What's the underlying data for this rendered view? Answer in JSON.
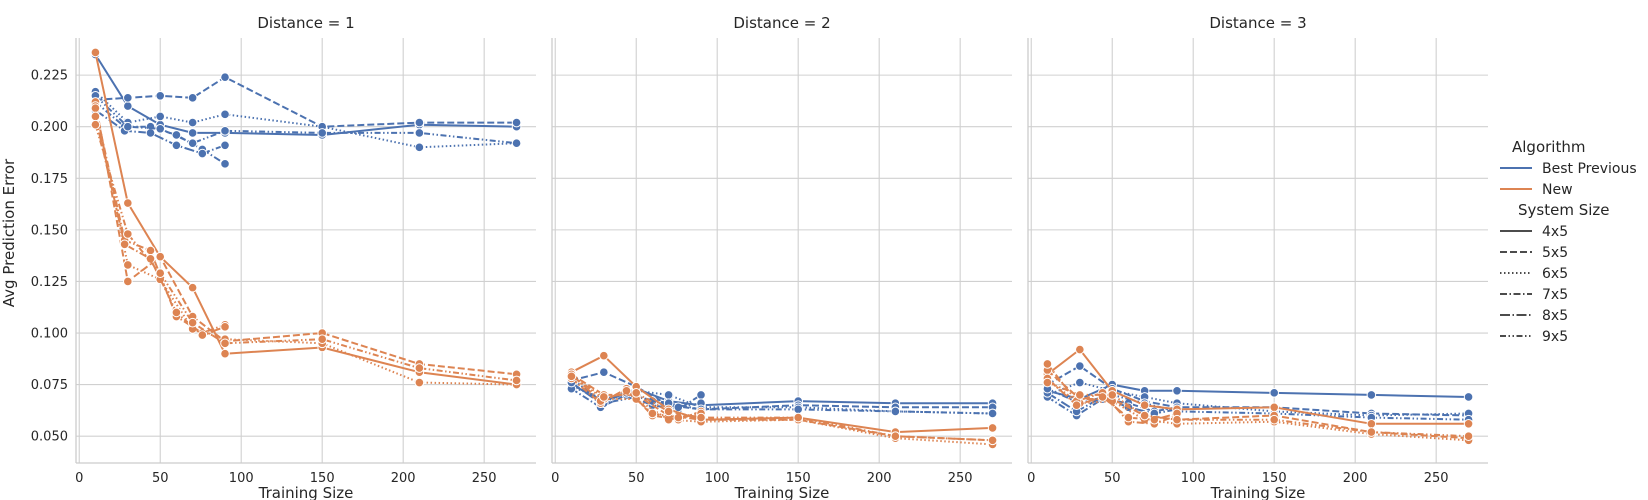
{
  "chart_data": {
    "type": "line",
    "xlabel": "Training Size",
    "ylabel": "Avg Prediction Error",
    "xlim": [
      -2,
      282
    ],
    "ylim": [
      0.037,
      0.243
    ],
    "xticks": [
      0,
      50,
      100,
      150,
      200,
      250
    ],
    "yticks": [
      0.05,
      0.075,
      0.1,
      0.125,
      0.15,
      0.175,
      0.2,
      0.225
    ],
    "ytick_labels": [
      "0.050",
      "0.075",
      "0.100",
      "0.125",
      "0.150",
      "0.175",
      "0.200",
      "0.225"
    ],
    "grid": true,
    "legend_position": "right",
    "legend": {
      "hue_title": "Algorithm",
      "hue": [
        {
          "name": "Best Previous",
          "color": "#4c72b0"
        },
        {
          "name": "New",
          "color": "#dd8452"
        }
      ],
      "style_title": "System Size",
      "styles": [
        {
          "name": "4x5",
          "dash": "solid"
        },
        {
          "name": "5x5",
          "dash": "dashed"
        },
        {
          "name": "6x5",
          "dash": "dotted"
        },
        {
          "name": "7x5",
          "dash": "dashdot"
        },
        {
          "name": "8x5",
          "dash": "longdashdot"
        },
        {
          "name": "9x5",
          "dash": "dashdotdot"
        }
      ]
    },
    "panels": [
      {
        "title": "Distance = 1",
        "series": [
          {
            "algorithm": "Best Previous",
            "system_size": "4x5",
            "x": [
              10,
              30,
              50,
              70,
              90,
              150,
              210,
              270
            ],
            "y": [
              0.235,
              0.21,
              0.201,
              0.197,
              0.197,
              0.196,
              0.201,
              0.2
            ]
          },
          {
            "algorithm": "Best Previous",
            "system_size": "5x5",
            "x": [
              10,
              30,
              50,
              70,
              90,
              150,
              210,
              270
            ],
            "y": [
              0.213,
              0.214,
              0.215,
              0.214,
              0.224,
              0.2,
              0.202,
              0.202
            ]
          },
          {
            "algorithm": "Best Previous",
            "system_size": "6x5",
            "x": [
              10,
              30,
              50,
              70,
              90,
              150,
              210,
              270
            ],
            "y": [
              0.217,
              0.202,
              0.205,
              0.202,
              0.206,
              0.2,
              0.19,
              0.192
            ]
          },
          {
            "algorithm": "Best Previous",
            "system_size": "7x5",
            "x": [
              10,
              28,
              44,
              60,
              76,
              90
            ],
            "y": [
              0.212,
              0.2,
              0.2,
              0.196,
              0.189,
              0.182
            ]
          },
          {
            "algorithm": "Best Previous",
            "system_size": "8x5",
            "x": [
              10,
              28,
              44,
              60,
              76,
              90
            ],
            "y": [
              0.208,
              0.198,
              0.197,
              0.191,
              0.187,
              0.191
            ]
          },
          {
            "algorithm": "Best Previous",
            "system_size": "9x5",
            "x": [
              10,
              30,
              50,
              70,
              90,
              150,
              210,
              270
            ],
            "y": [
              0.215,
              0.2,
              0.199,
              0.192,
              0.198,
              0.197,
              0.197,
              0.192
            ]
          },
          {
            "algorithm": "New",
            "system_size": "4x5",
            "x": [
              10,
              30,
              50,
              70,
              90,
              150,
              210,
              270
            ],
            "y": [
              0.236,
              0.163,
              0.137,
              0.122,
              0.09,
              0.093,
              0.081,
              0.075
            ]
          },
          {
            "algorithm": "New",
            "system_size": "5x5",
            "x": [
              10,
              30,
              50,
              70,
              90,
              150,
              210,
              270
            ],
            "y": [
              0.212,
              0.125,
              0.137,
              0.108,
              0.096,
              0.1,
              0.085,
              0.08
            ]
          },
          {
            "algorithm": "New",
            "system_size": "6x5",
            "x": [
              10,
              30,
              50,
              70,
              90,
              150,
              210,
              270
            ],
            "y": [
              0.21,
              0.133,
              0.126,
              0.102,
              0.097,
              0.095,
              0.076,
              0.075
            ]
          },
          {
            "algorithm": "New",
            "system_size": "7x5",
            "x": [
              10,
              28,
              44,
              60,
              76,
              90
            ],
            "y": [
              0.209,
              0.145,
              0.14,
              0.108,
              0.1,
              0.104
            ]
          },
          {
            "algorithm": "New",
            "system_size": "8x5",
            "x": [
              10,
              28,
              44,
              60,
              76,
              90
            ],
            "y": [
              0.205,
              0.143,
              0.136,
              0.11,
              0.099,
              0.103
            ]
          },
          {
            "algorithm": "New",
            "system_size": "9x5",
            "x": [
              10,
              30,
              50,
              70,
              90,
              150,
              210,
              270
            ],
            "y": [
              0.201,
              0.148,
              0.129,
              0.105,
              0.095,
              0.097,
              0.083,
              0.077
            ]
          }
        ]
      },
      {
        "title": "Distance = 2",
        "series": [
          {
            "algorithm": "Best Previous",
            "system_size": "4x5",
            "x": [
              10,
              30,
              50,
              70,
              90,
              150,
              210,
              270
            ],
            "y": [
              0.075,
              0.067,
              0.073,
              0.067,
              0.065,
              0.067,
              0.066,
              0.066
            ]
          },
          {
            "algorithm": "Best Previous",
            "system_size": "5x5",
            "x": [
              10,
              30,
              50,
              70,
              90,
              150,
              210,
              270
            ],
            "y": [
              0.077,
              0.081,
              0.074,
              0.065,
              0.063,
              0.065,
              0.064,
              0.064
            ]
          },
          {
            "algorithm": "Best Previous",
            "system_size": "6x5",
            "x": [
              10,
              30,
              50,
              70,
              90,
              150,
              210,
              270
            ],
            "y": [
              0.074,
              0.068,
              0.072,
              0.07,
              0.064,
              0.064,
              0.062,
              0.061
            ]
          },
          {
            "algorithm": "Best Previous",
            "system_size": "7x5",
            "x": [
              10,
              28,
              44,
              60,
              76,
              90
            ],
            "y": [
              0.073,
              0.064,
              0.07,
              0.065,
              0.063,
              0.07
            ]
          },
          {
            "algorithm": "Best Previous",
            "system_size": "8x5",
            "x": [
              10,
              28,
              44,
              60,
              76,
              90
            ],
            "y": [
              0.076,
              0.066,
              0.071,
              0.067,
              0.064,
              0.066
            ]
          },
          {
            "algorithm": "Best Previous",
            "system_size": "9x5",
            "x": [
              10,
              30,
              50,
              70,
              90,
              150,
              210,
              270
            ],
            "y": [
              0.078,
              0.066,
              0.069,
              0.066,
              0.063,
              0.063,
              0.062,
              0.061
            ]
          },
          {
            "algorithm": "New",
            "system_size": "4x5",
            "x": [
              10,
              30,
              50,
              70,
              90,
              150,
              210,
              270
            ],
            "y": [
              0.081,
              0.089,
              0.074,
              0.063,
              0.058,
              0.059,
              0.052,
              0.054
            ]
          },
          {
            "algorithm": "New",
            "system_size": "5x5",
            "x": [
              10,
              30,
              50,
              70,
              90,
              150,
              210,
              270
            ],
            "y": [
              0.08,
              0.07,
              0.07,
              0.06,
              0.058,
              0.058,
              0.05,
              0.048
            ]
          },
          {
            "algorithm": "New",
            "system_size": "6x5",
            "x": [
              10,
              30,
              50,
              70,
              90,
              150,
              210,
              270
            ],
            "y": [
              0.079,
              0.068,
              0.068,
              0.058,
              0.057,
              0.058,
              0.049,
              0.046
            ]
          },
          {
            "algorithm": "New",
            "system_size": "7x5",
            "x": [
              10,
              28,
              44,
              60,
              76,
              90
            ],
            "y": [
              0.078,
              0.066,
              0.073,
              0.06,
              0.058,
              0.062
            ]
          },
          {
            "algorithm": "New",
            "system_size": "8x5",
            "x": [
              10,
              28,
              44,
              60,
              76,
              90
            ],
            "y": [
              0.08,
              0.067,
              0.072,
              0.061,
              0.059,
              0.061
            ]
          },
          {
            "algorithm": "New",
            "system_size": "9x5",
            "x": [
              10,
              30,
              50,
              70,
              90,
              150,
              210,
              270
            ],
            "y": [
              0.079,
              0.069,
              0.071,
              0.062,
              0.059,
              0.059,
              0.05,
              0.048
            ]
          }
        ]
      },
      {
        "title": "Distance = 3",
        "series": [
          {
            "algorithm": "Best Previous",
            "system_size": "4x5",
            "x": [
              10,
              30,
              50,
              70,
              90,
              150,
              210,
              270
            ],
            "y": [
              0.072,
              0.068,
              0.075,
              0.072,
              0.072,
              0.071,
              0.07,
              0.069
            ]
          },
          {
            "algorithm": "Best Previous",
            "system_size": "5x5",
            "x": [
              10,
              30,
              50,
              70,
              90,
              150,
              210,
              270
            ],
            "y": [
              0.075,
              0.084,
              0.073,
              0.067,
              0.064,
              0.064,
              0.061,
              0.06
            ]
          },
          {
            "algorithm": "Best Previous",
            "system_size": "6x5",
            "x": [
              10,
              30,
              50,
              70,
              90,
              150,
              210,
              270
            ],
            "y": [
              0.07,
              0.076,
              0.072,
              0.069,
              0.066,
              0.062,
              0.06,
              0.061
            ]
          },
          {
            "algorithm": "Best Previous",
            "system_size": "7x5",
            "x": [
              10,
              28,
              44,
              60,
              76,
              90
            ],
            "y": [
              0.069,
              0.06,
              0.068,
              0.066,
              0.062,
              0.064
            ]
          },
          {
            "algorithm": "Best Previous",
            "system_size": "8x5",
            "x": [
              10,
              28,
              44,
              60,
              76,
              90
            ],
            "y": [
              0.071,
              0.062,
              0.069,
              0.064,
              0.061,
              0.063
            ]
          },
          {
            "algorithm": "Best Previous",
            "system_size": "9x5",
            "x": [
              10,
              30,
              50,
              70,
              90,
              150,
              210,
              270
            ],
            "y": [
              0.073,
              0.066,
              0.07,
              0.066,
              0.062,
              0.061,
              0.059,
              0.058
            ]
          },
          {
            "algorithm": "New",
            "system_size": "4x5",
            "x": [
              10,
              30,
              50,
              70,
              90,
              150,
              210,
              270
            ],
            "y": [
              0.08,
              0.092,
              0.072,
              0.065,
              0.063,
              0.064,
              0.056,
              0.056
            ]
          },
          {
            "algorithm": "New",
            "system_size": "5x5",
            "x": [
              10,
              30,
              50,
              70,
              90,
              150,
              210,
              270
            ],
            "y": [
              0.082,
              0.068,
              0.068,
              0.06,
              0.058,
              0.06,
              0.052,
              0.049
            ]
          },
          {
            "algorithm": "New",
            "system_size": "6x5",
            "x": [
              10,
              30,
              50,
              70,
              90,
              150,
              210,
              270
            ],
            "y": [
              0.077,
              0.066,
              0.067,
              0.058,
              0.056,
              0.057,
              0.051,
              0.048
            ]
          },
          {
            "algorithm": "New",
            "system_size": "7x5",
            "x": [
              10,
              28,
              44,
              60,
              76,
              90
            ],
            "y": [
              0.085,
              0.067,
              0.071,
              0.057,
              0.056,
              0.06
            ]
          },
          {
            "algorithm": "New",
            "system_size": "8x5",
            "x": [
              10,
              28,
              44,
              60,
              76,
              90
            ],
            "y": [
              0.078,
              0.065,
              0.069,
              0.059,
              0.058,
              0.061
            ]
          },
          {
            "algorithm": "New",
            "system_size": "9x5",
            "x": [
              10,
              30,
              50,
              70,
              90,
              150,
              210,
              270
            ],
            "y": [
              0.076,
              0.07,
              0.07,
              0.06,
              0.058,
              0.058,
              0.052,
              0.05
            ]
          }
        ]
      }
    ]
  }
}
